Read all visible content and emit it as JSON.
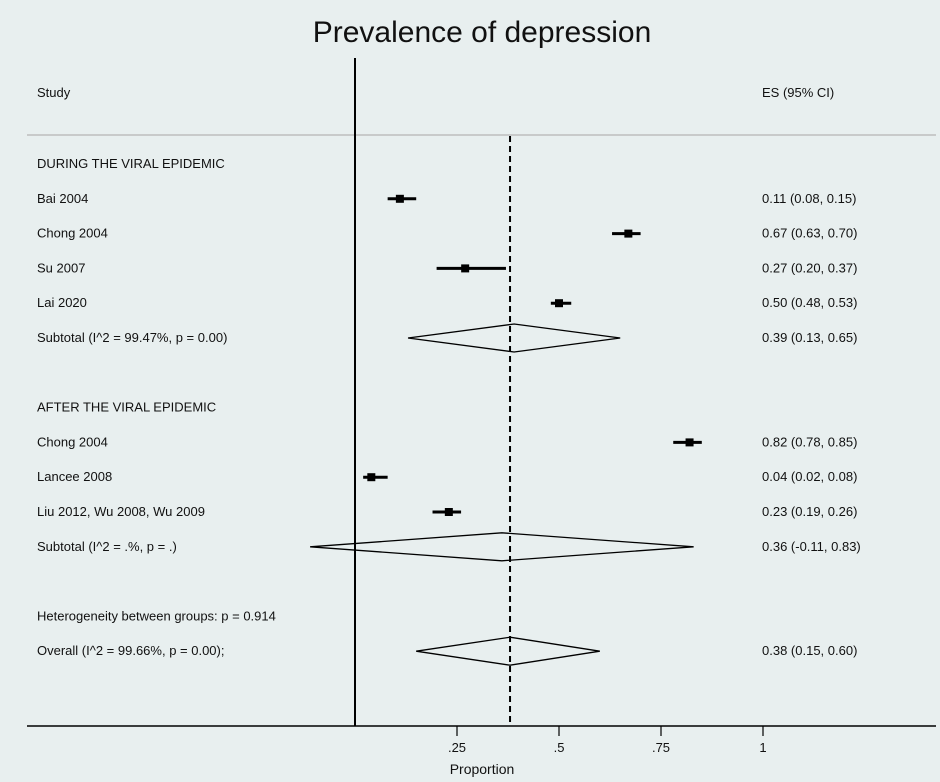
{
  "chart_data": {
    "type": "forest",
    "title": "Prevalence of depression",
    "xlabel": "Proportion",
    "x_ticks": [
      {
        "value": 0.25,
        "label": ".25"
      },
      {
        "value": 0.5,
        "label": ".5"
      },
      {
        "value": 0.75,
        "label": ".75"
      },
      {
        "value": 1,
        "label": "1"
      }
    ],
    "xlim": [
      -0.07,
      1.05
    ],
    "null_line": 0,
    "overall_line": 0.38,
    "headers": {
      "study": "Study",
      "es": "ES (95% CI)"
    },
    "rows": [
      {
        "kind": "group",
        "label": "DURING THE VIRAL EPIDEMIC"
      },
      {
        "kind": "study",
        "label": "Bai 2004",
        "es": 0.11,
        "lo": 0.08,
        "hi": 0.15,
        "text": "0.11 (0.08, 0.15)"
      },
      {
        "kind": "study",
        "label": "Chong 2004",
        "es": 0.67,
        "lo": 0.63,
        "hi": 0.7,
        "text": "0.67 (0.63, 0.70)"
      },
      {
        "kind": "study",
        "label": "Su 2007",
        "es": 0.27,
        "lo": 0.2,
        "hi": 0.37,
        "text": "0.27 (0.20, 0.37)"
      },
      {
        "kind": "study",
        "label": "Lai 2020",
        "es": 0.5,
        "lo": 0.48,
        "hi": 0.53,
        "text": "0.50 (0.48, 0.53)"
      },
      {
        "kind": "subtotal",
        "label": "Subtotal  (I^2 = 99.47%, p = 0.00)",
        "es": 0.39,
        "lo": 0.13,
        "hi": 0.65,
        "text": "0.39 (0.13, 0.65)"
      },
      {
        "kind": "spacer"
      },
      {
        "kind": "group",
        "label": "AFTER THE VIRAL EPIDEMIC"
      },
      {
        "kind": "study",
        "label": "Chong 2004",
        "es": 0.82,
        "lo": 0.78,
        "hi": 0.85,
        "text": "0.82 (0.78, 0.85)"
      },
      {
        "kind": "study",
        "label": "Lancee 2008",
        "es": 0.04,
        "lo": 0.02,
        "hi": 0.08,
        "text": "0.04 (0.02, 0.08)"
      },
      {
        "kind": "study",
        "label": "Liu 2012, Wu 2008, Wu 2009",
        "es": 0.23,
        "lo": 0.19,
        "hi": 0.26,
        "text": "0.23 (0.19, 0.26)"
      },
      {
        "kind": "subtotal",
        "label": "Subtotal  (I^2 = .%, p = .)",
        "es": 0.36,
        "lo": -0.11,
        "hi": 0.83,
        "text": "0.36 (-0.11, 0.83)"
      },
      {
        "kind": "spacer"
      },
      {
        "kind": "note",
        "label": "Heterogeneity between groups: p = 0.914"
      },
      {
        "kind": "overall",
        "label": "Overall  (I^2 = 99.66%, p = 0.00);",
        "es": 0.38,
        "lo": 0.15,
        "hi": 0.6,
        "text": "0.38 (0.15, 0.60)"
      }
    ]
  }
}
